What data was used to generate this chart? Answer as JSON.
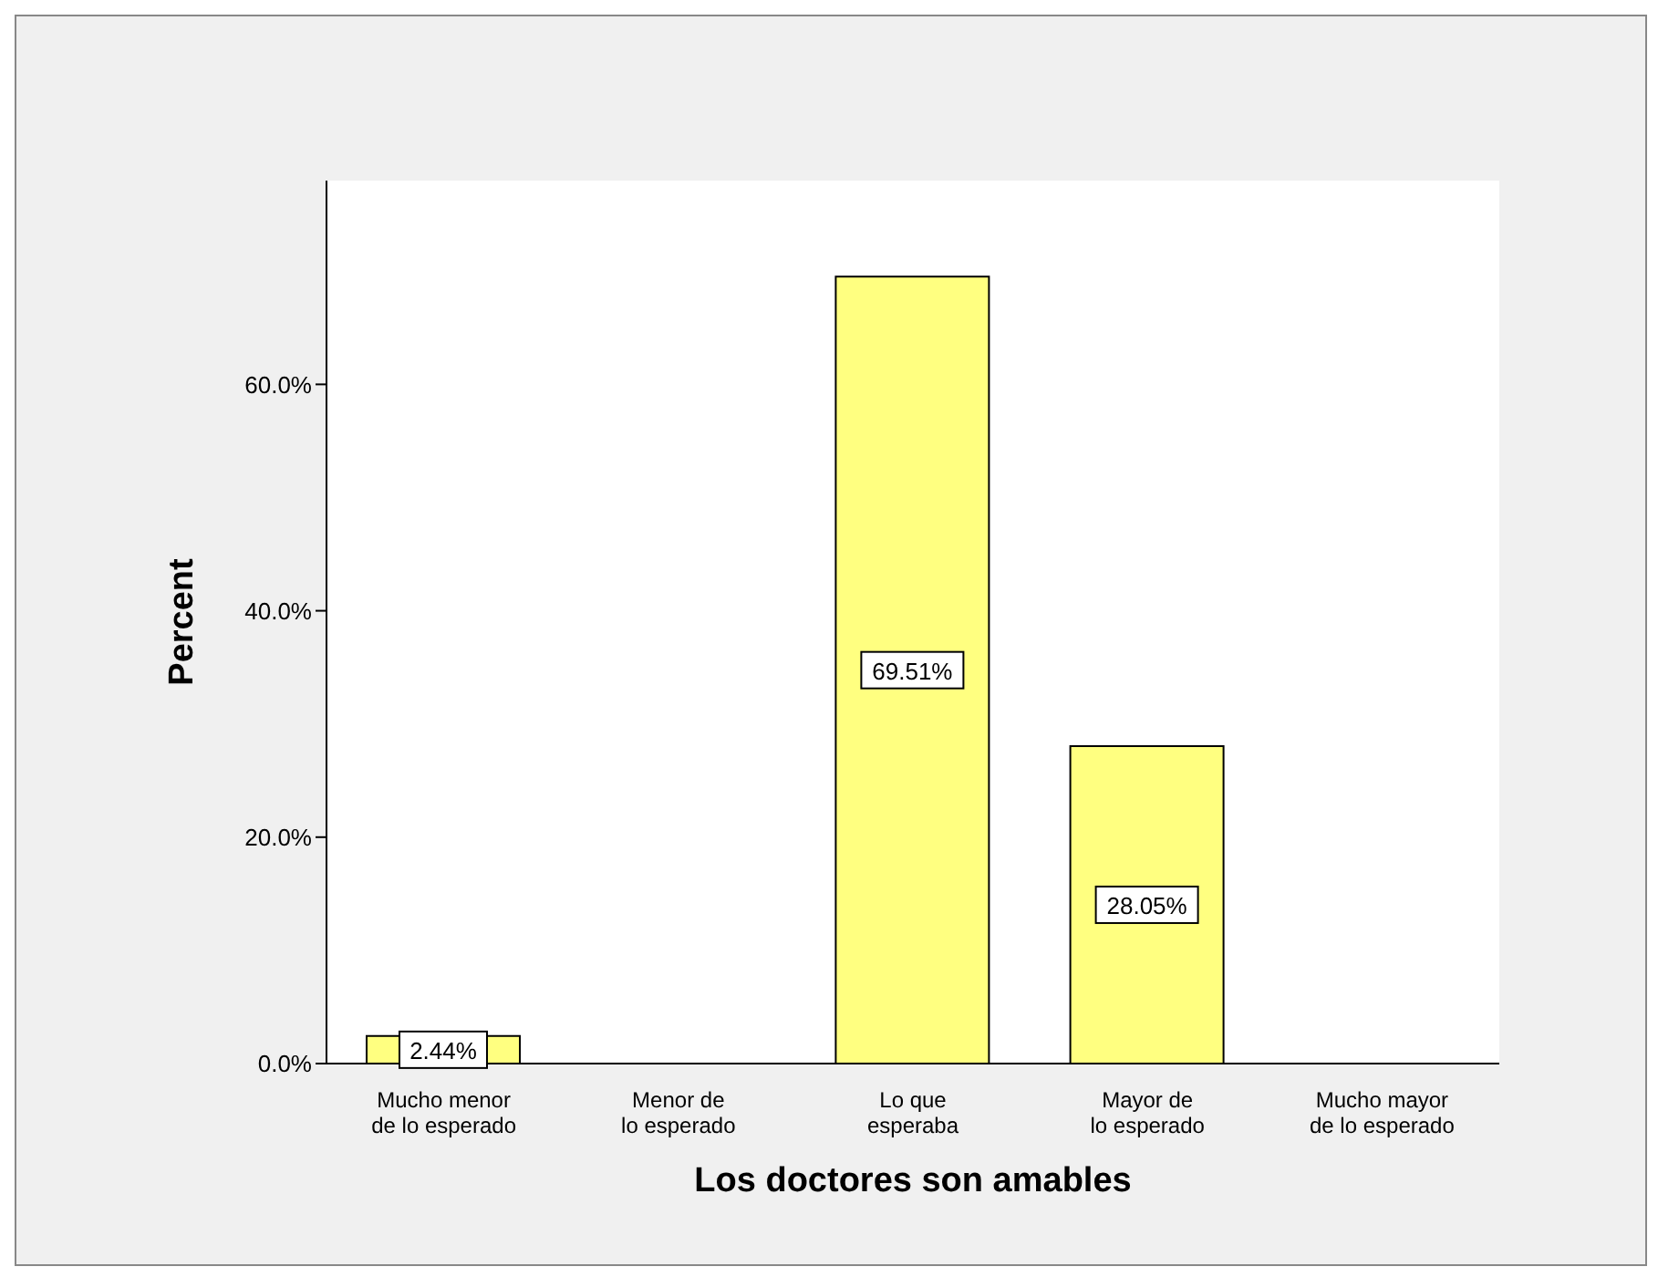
{
  "chart_data": {
    "type": "bar",
    "xlabel": "Los doctores son amables",
    "ylabel": "Percent",
    "categories": [
      "Mucho menor de lo esperado",
      "Menor de lo esperado",
      "Lo que esperaba",
      "Mayor de lo esperado",
      "Mucho mayor de lo esperado"
    ],
    "values": [
      2.44,
      0,
      69.51,
      28.05,
      0
    ],
    "value_labels": [
      "2.44%",
      null,
      "69.51%",
      "28.05%",
      null
    ],
    "color": "#ffff80",
    "ylim": [
      0,
      78
    ],
    "yticks": [
      {
        "value": 0,
        "label": "0.0%"
      },
      {
        "value": 20,
        "label": "20.0%"
      },
      {
        "value": 40,
        "label": "40.0%"
      },
      {
        "value": 60,
        "label": "60.0%"
      }
    ],
    "grid": false,
    "legend": false
  }
}
